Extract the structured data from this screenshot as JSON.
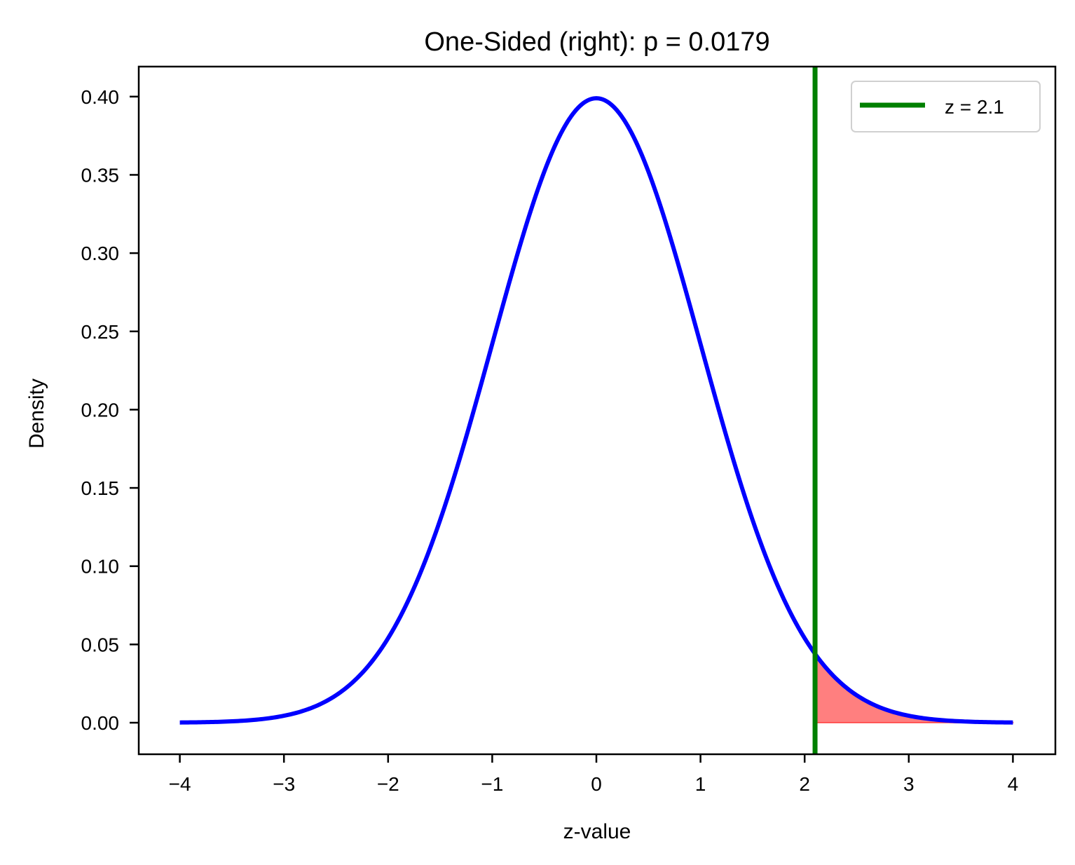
{
  "chart_data": {
    "type": "line",
    "title": "One-Sided (right): p = 0.0179",
    "xlabel": "z-value",
    "ylabel": "Density",
    "xlim": [
      -4.4,
      4.4
    ],
    "ylim": [
      -0.02,
      0.42
    ],
    "grid": false,
    "legend_position": "upper right",
    "x_ticks": [
      -4,
      -3,
      -2,
      -1,
      0,
      1,
      2,
      3,
      4
    ],
    "x_tick_labels": [
      "−4",
      "−3",
      "−2",
      "−1",
      "0",
      "1",
      "2",
      "3",
      "4"
    ],
    "y_ticks": [
      0.0,
      0.05,
      0.1,
      0.15,
      0.2,
      0.25,
      0.3,
      0.35,
      0.4
    ],
    "y_tick_labels": [
      "0.00",
      "0.05",
      "0.10",
      "0.15",
      "0.20",
      "0.25",
      "0.30",
      "0.35",
      "0.40"
    ],
    "series": [
      {
        "name": "Standard normal density",
        "kind": "line",
        "color": "#0000ff",
        "x_range": [
          -4,
          4
        ],
        "function": "standard_normal_pdf",
        "x": [
          -4,
          -3.5,
          -3,
          -2.5,
          -2,
          -1.5,
          -1,
          -0.5,
          0,
          0.5,
          1,
          1.5,
          2,
          2.1,
          2.5,
          3,
          3.5,
          4
        ],
        "values": [
          0.0001,
          0.0009,
          0.0044,
          0.0175,
          0.054,
          0.1295,
          0.242,
          0.3521,
          0.3989,
          0.3521,
          0.242,
          0.1295,
          0.054,
          0.044,
          0.0175,
          0.0044,
          0.0009,
          0.0001
        ]
      },
      {
        "name": "z = 2.1",
        "kind": "vline",
        "color": "#008000",
        "x": 2.1
      },
      {
        "name": "Rejection region (right tail)",
        "kind": "area",
        "color": "#ff0000",
        "alpha": 0.5,
        "x_range": [
          2.1,
          4
        ],
        "area": 0.0179
      }
    ],
    "legend": [
      {
        "label": "z = 2.1",
        "color": "#008000"
      }
    ],
    "annotations": {
      "p_value": 0.0179,
      "z": 2.1,
      "test": "One-Sided (right)"
    }
  },
  "colors": {
    "curve": "#0000ff",
    "zline": "#008000",
    "fill": "#ff0000",
    "axes": "#000000"
  }
}
